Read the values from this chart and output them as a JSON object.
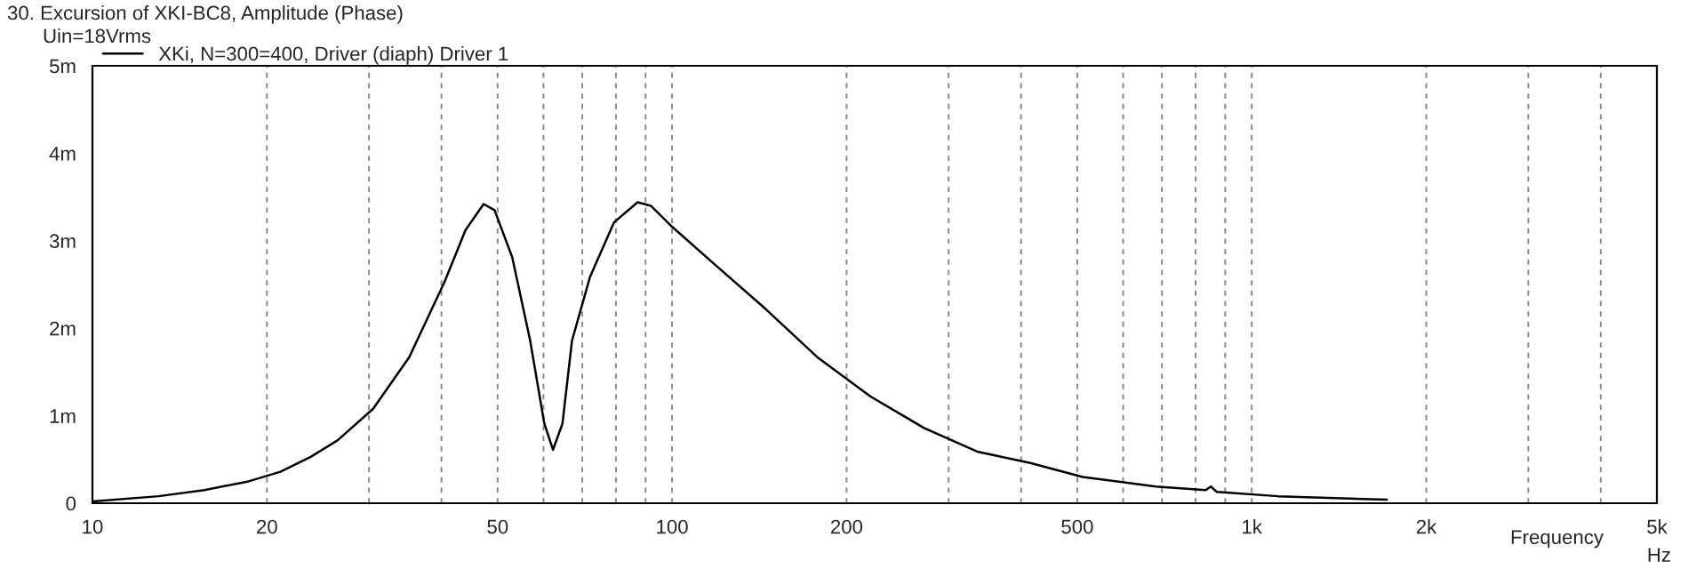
{
  "chart_data": {
    "type": "line",
    "title": "30. Excursion of XKI-BC8, Amplitude (Phase)",
    "subtitle": "Uin=18Vrms",
    "xlabel": "Frequency",
    "annotations": [
      "Hz"
    ],
    "log": "x",
    "grid": "x",
    "legend": "top left",
    "xlim": [
      10,
      5000
    ],
    "xticks": [
      10,
      20,
      50,
      100,
      200,
      500,
      {
        "value": 1000,
        "label": "1k"
      },
      {
        "value": 2000,
        "label": "2k"
      },
      {
        "value": 5000,
        "label": "5k"
      }
    ],
    "ylim": [
      0,
      5
    ],
    "yticks": [
      0,
      {
        "value": 1,
        "label": "1m"
      },
      {
        "value": 2,
        "label": "2m"
      },
      {
        "value": 3,
        "label": "3m"
      },
      {
        "value": 4,
        "label": "4m"
      },
      {
        "value": 5,
        "label": "5m"
      }
    ],
    "series": [
      {
        "name": "XKi, N=300=400, Driver (diaph) Driver 1",
        "color": "#000000",
        "x": [
          10,
          13,
          15.6,
          18.6,
          21.1,
          23.8,
          26.5,
          30.5,
          35.2,
          40.5,
          44,
          47.3,
          49.4,
          53,
          56.9,
          60.2,
          62.3,
          64.7,
          67.2,
          72.2,
          79.4,
          87.2,
          91.9,
          100,
          117,
          145,
          178,
          220,
          272,
          336,
          415,
          511,
          683,
          833,
          850,
          870,
          1110,
          1710
        ],
        "values": [
          0.02,
          0.08,
          0.15,
          0.25,
          0.36,
          0.53,
          0.72,
          1.08,
          1.67,
          2.53,
          3.12,
          3.42,
          3.35,
          2.81,
          1.86,
          0.91,
          0.61,
          0.91,
          1.86,
          2.59,
          3.21,
          3.44,
          3.4,
          3.16,
          2.76,
          2.22,
          1.67,
          1.22,
          0.86,
          0.59,
          0.46,
          0.3,
          0.19,
          0.15,
          0.19,
          0.13,
          0.08,
          0.04
        ]
      }
    ]
  }
}
